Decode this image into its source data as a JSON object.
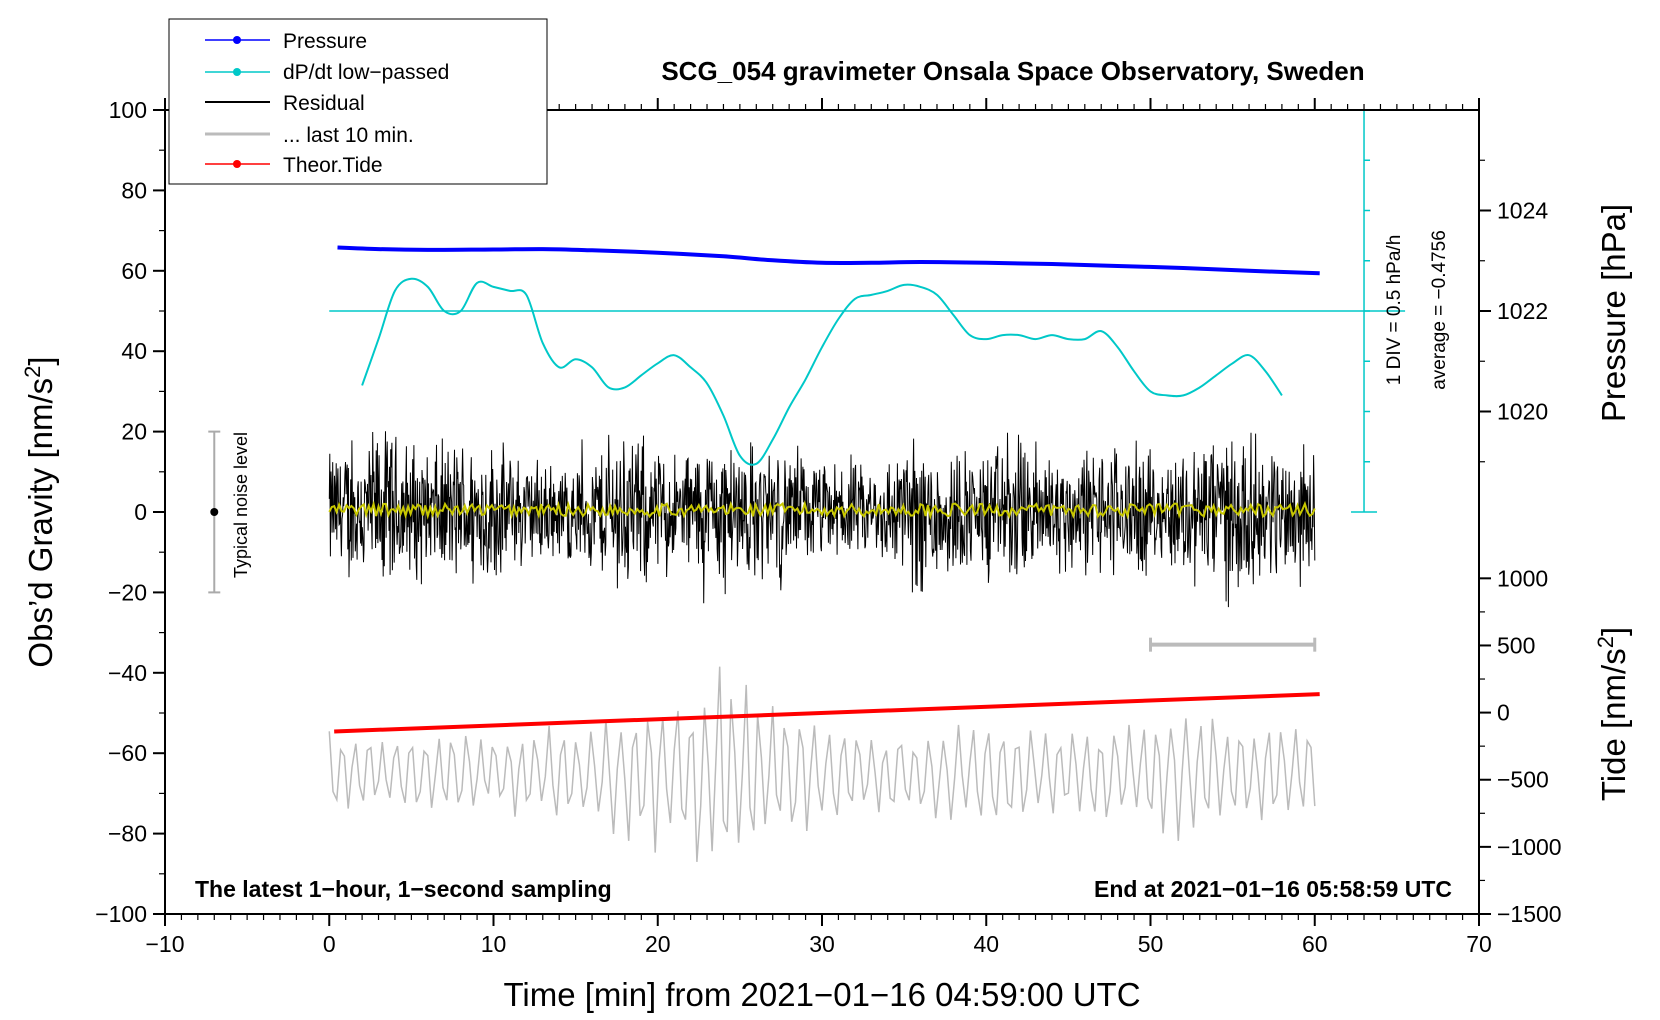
{
  "chart_data": {
    "type": "line",
    "title": "SCG_054 gravimeter Onsala Space Observatory, Sweden",
    "xlabel": "Time [min] from 2021−01−16 04:59:00 UTC",
    "ylabel_left": "Obs’d Gravity [nm/s",
    "ylabel_left_sup": "2",
    "ylabel_left_close": "]",
    "ylabel_pressure": "Pressure [hPa]",
    "ylabel_tide": "Tide [nm/s",
    "ylabel_tide_sup": "2",
    "ylabel_tide_close": "]",
    "xlim": [
      -10,
      70
    ],
    "ylim": [
      -100,
      100
    ],
    "x_ticks": [
      -10,
      0,
      10,
      20,
      30,
      40,
      50,
      60,
      70
    ],
    "x_tick_labels": [
      "−10",
      "0",
      "10",
      "20",
      "30",
      "40",
      "50",
      "60",
      "70"
    ],
    "y_ticks": [
      -100,
      -80,
      -60,
      -40,
      -20,
      0,
      20,
      40,
      60,
      80,
      100
    ],
    "y_tick_labels": [
      "−100",
      "−80",
      "−60",
      "−40",
      "−20",
      "0",
      "20",
      "40",
      "60",
      "80",
      "100"
    ],
    "pressure_axis": {
      "ticks": [
        1020,
        1022,
        1024
      ],
      "tick_labels": [
        "1020",
        "1022",
        "1024"
      ],
      "anchor_a": {
        "value": 1020,
        "gravity_equiv": 25
      },
      "anchor_b": {
        "value": 1024,
        "gravity_equiv": 75
      }
    },
    "tide_axis": {
      "ticks": [
        -1500,
        -1000,
        -500,
        0,
        500,
        1000
      ],
      "tick_labels": [
        "−1500",
        "−1000",
        "−500",
        "0",
        "500",
        "1000"
      ],
      "anchor_a": {
        "value": -1500,
        "gravity_equiv": -100
      },
      "anchor_b": {
        "value": 1000,
        "gravity_equiv": -16.5
      }
    },
    "legend": [
      {
        "label": "Pressure",
        "color": "#0000ff",
        "marker": true
      },
      {
        "label": "dP/dt low−passed",
        "color": "#00c8c8",
        "marker": true
      },
      {
        "label": "Residual",
        "color": "#000000",
        "marker": false
      },
      {
        "label": "... last 10 min.",
        "color": "#bbbbbb",
        "marker": false
      },
      {
        "label": "Theor.Tide",
        "color": "#ff0000",
        "marker": true
      }
    ],
    "series": [
      {
        "name": "Pressure",
        "color": "#0000ff",
        "x": [
          0.5,
          3,
          6,
          10,
          13,
          16,
          20,
          24,
          27,
          30,
          33,
          36,
          40,
          44,
          48,
          52,
          56,
          60.3
        ],
        "values": [
          65.8,
          65.4,
          65.2,
          65.3,
          65.4,
          65.1,
          64.5,
          63.6,
          62.6,
          62.0,
          62.0,
          62.2,
          62.0,
          61.7,
          61.2,
          60.7,
          60.0,
          59.4
        ]
      },
      {
        "name": "dP/dt low−passed",
        "color": "#00c8c8",
        "x": [
          2,
          3,
          4,
          5,
          6,
          7,
          8,
          9,
          10,
          11,
          12,
          13,
          14,
          15,
          16,
          17,
          18,
          19,
          20,
          21,
          22,
          23,
          24,
          25,
          26,
          27,
          28,
          29,
          30,
          31,
          32,
          33,
          34,
          35,
          36,
          37,
          38,
          39,
          40,
          41,
          42,
          43,
          44,
          45,
          46,
          47,
          48,
          49,
          50,
          51,
          52,
          53,
          54,
          55,
          56,
          57,
          58
        ],
        "values": [
          31.5,
          43,
          55,
          58,
          56,
          50,
          50,
          57,
          56,
          55,
          54,
          42,
          36,
          38,
          36,
          31,
          31,
          34,
          37,
          39,
          36,
          32,
          24,
          14,
          12,
          18,
          26,
          33,
          41,
          48,
          53,
          54,
          55,
          56.5,
          56,
          54,
          49,
          44,
          43,
          44,
          44,
          43,
          44,
          43,
          43,
          45,
          41,
          35,
          30,
          29,
          29,
          31,
          34,
          37,
          39,
          35,
          29
        ]
      },
      {
        "name": "Residual",
        "color": "#000000",
        "x_range": [
          0,
          60
        ],
        "envelope_x": [
          0,
          3,
          6,
          9,
          12,
          15,
          18,
          21,
          24,
          27,
          30,
          33,
          36,
          39,
          42,
          45,
          48,
          51,
          54,
          57,
          60
        ],
        "envelope_values": [
          18,
          24,
          19,
          22,
          16,
          14,
          24,
          17,
          22,
          19,
          14,
          13,
          24,
          16,
          22,
          18,
          20,
          16,
          26,
          20,
          18
        ]
      },
      {
        "name": "Residual smoothed",
        "color": "#c8c800",
        "x_range": [
          0,
          60
        ],
        "level": 0.5
      },
      {
        "name": "... last 10 min.",
        "color": "#bbbbbb",
        "x_range": [
          0,
          60
        ],
        "center": -65,
        "envelope_x": [
          0,
          5,
          10,
          15,
          20,
          24,
          27,
          30,
          35,
          40,
          45,
          50,
          53,
          55,
          57,
          60
        ],
        "envelope_values": [
          12,
          11,
          10,
          14,
          20,
          28,
          20,
          14,
          10,
          14,
          12,
          16,
          18,
          16,
          14,
          12
        ]
      },
      {
        "name": "Theor.Tide",
        "color": "#ff0000",
        "x": [
          0.3,
          60.3
        ],
        "values": [
          -54.6,
          -45.3
        ]
      }
    ],
    "cyan_reference": {
      "y_line": 50,
      "x_start": 0,
      "x_end": 63,
      "scale_x": 63,
      "scale_y_bottom": 0,
      "scale_y_top": 100,
      "scale_ticks": [
        0,
        12.5,
        25,
        37.5,
        50,
        62.5,
        75,
        87.5,
        100
      ]
    },
    "last10_bar": {
      "x_start": 50,
      "x_end": 60,
      "y": -33
    },
    "noise_bar": {
      "x": -7,
      "y_low": -20,
      "y_high": 20,
      "center": 0
    },
    "annotations": {
      "div_text": "1 DIV = 0.5 hPa/h",
      "average_text": "average = −0.4756",
      "noise_text": "Typical noise level",
      "bottom_left_text": "The latest 1−hour, 1−second sampling",
      "bottom_right_text": "End at 2021−01−16 05:58:59 UTC"
    }
  }
}
